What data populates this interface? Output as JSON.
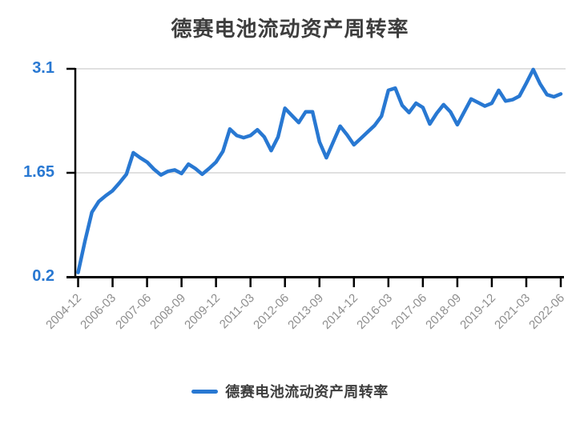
{
  "page": {
    "background": "#ffffff"
  },
  "header": {
    "title": "德赛电池流动资产周转率"
  },
  "legend": {
    "items": [
      {
        "label": "德赛电池流动资产周转率"
      }
    ]
  },
  "colors": {
    "accent": "#2878d2",
    "axis": "#000000",
    "grid": "#e0e0e0",
    "x_label": "#8e8e8e",
    "title_text": "#3d3d3d"
  },
  "chart_data": {
    "type": "line",
    "title": "德赛电池流动资产周转率",
    "xlabel": "",
    "ylabel": "",
    "ylim": [
      0.2,
      3.1
    ],
    "y_ticks": [
      0.2,
      1.65,
      3.1
    ],
    "y_tick_labels": [
      "0.2",
      "1.65",
      "3.1"
    ],
    "grid": "horizontal-gridlines-at-1.65-and-3.1",
    "legend_position": "bottom-center",
    "x_tick_interval": 5,
    "x_tick_labels": [
      "2004-12",
      "2006-03",
      "2007-06",
      "2008-09",
      "2009-12",
      "2011-03",
      "2012-06",
      "2013-09",
      "2014-12",
      "2016-03",
      "2017-06",
      "2018-09",
      "2019-12",
      "2021-03",
      "2022-06"
    ],
    "x": [
      "2004-12",
      "2005-03",
      "2005-06",
      "2005-09",
      "2005-12",
      "2006-03",
      "2006-06",
      "2006-09",
      "2006-12",
      "2007-03",
      "2007-06",
      "2007-09",
      "2007-12",
      "2008-03",
      "2008-06",
      "2008-09",
      "2008-12",
      "2009-03",
      "2009-06",
      "2009-09",
      "2009-12",
      "2010-03",
      "2010-06",
      "2010-09",
      "2010-12",
      "2011-03",
      "2011-06",
      "2011-09",
      "2011-12",
      "2012-03",
      "2012-06",
      "2012-09",
      "2012-12",
      "2013-03",
      "2013-06",
      "2013-09",
      "2013-12",
      "2014-03",
      "2014-06",
      "2014-09",
      "2014-12",
      "2015-03",
      "2015-06",
      "2015-09",
      "2015-12",
      "2016-03",
      "2016-06",
      "2016-09",
      "2016-12",
      "2017-03",
      "2017-06",
      "2017-09",
      "2017-12",
      "2018-03",
      "2018-06",
      "2018-09",
      "2018-12",
      "2019-03",
      "2019-06",
      "2019-09",
      "2019-12",
      "2020-03",
      "2020-06",
      "2020-09",
      "2020-12",
      "2021-03",
      "2021-06",
      "2021-09",
      "2021-12",
      "2022-03",
      "2022-06"
    ],
    "series": [
      {
        "name": "德赛电池流动资产周转率",
        "color": "#2878d2",
        "values": [
          0.26,
          0.7,
          1.1,
          1.25,
          1.33,
          1.4,
          1.51,
          1.63,
          1.93,
          1.86,
          1.8,
          1.7,
          1.62,
          1.67,
          1.69,
          1.64,
          1.77,
          1.71,
          1.63,
          1.71,
          1.8,
          1.95,
          2.26,
          2.17,
          2.14,
          2.17,
          2.25,
          2.15,
          1.96,
          2.15,
          2.55,
          2.45,
          2.35,
          2.5,
          2.5,
          2.08,
          1.86,
          2.08,
          2.3,
          2.18,
          2.04,
          2.13,
          2.22,
          2.31,
          2.44,
          2.8,
          2.83,
          2.59,
          2.49,
          2.62,
          2.56,
          2.33,
          2.48,
          2.6,
          2.5,
          2.32,
          2.5,
          2.68,
          2.63,
          2.58,
          2.62,
          2.8,
          2.65,
          2.67,
          2.72,
          2.9,
          3.09,
          2.89,
          2.74,
          2.71,
          2.75
        ]
      }
    ]
  }
}
